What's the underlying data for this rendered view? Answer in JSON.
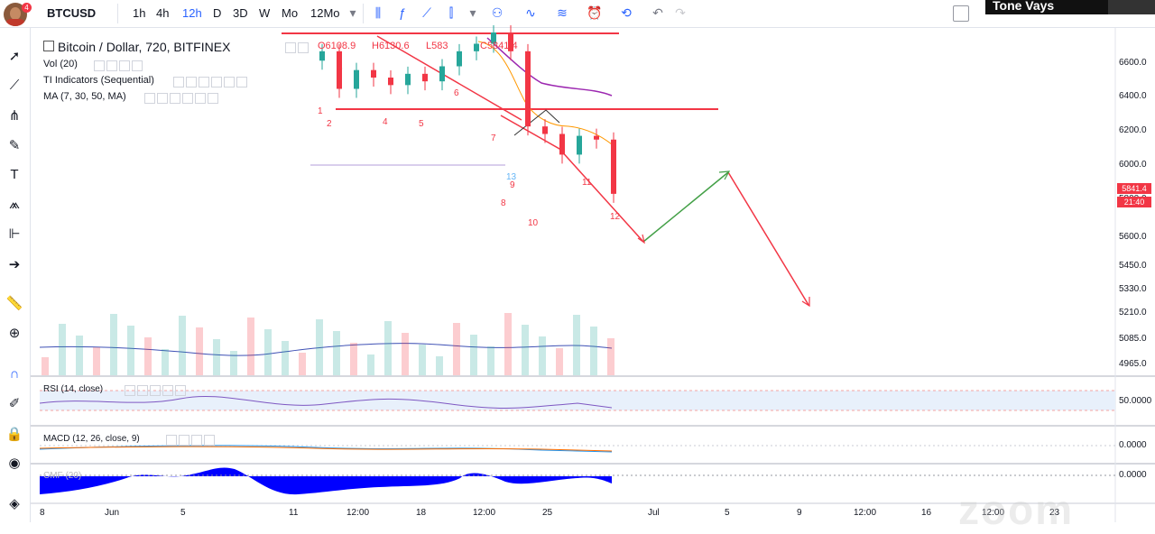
{
  "toolbar": {
    "symbol": "BTCUSD",
    "intervals": [
      "1h",
      "4h",
      "12h",
      "D",
      "3D",
      "W",
      "Mo",
      "12Mo"
    ],
    "active_interval": "12h",
    "icons": [
      "bar-chart-icon",
      "indicators-icon",
      "line-tool-icon",
      "compare-icon",
      "dropdown-icon",
      "alert-icon",
      "replay-icon",
      "undo-icon",
      "redo-icon"
    ]
  },
  "video_overlay": {
    "name": "Tone Vays"
  },
  "chart": {
    "title": "Bitcoin / Dollar, 720, BITFINEX",
    "ohlc": {
      "o": "O6108.9",
      "h": "H6130.6",
      "l": "L583",
      "c": "C5841.4"
    },
    "legends": [
      "Vol (20)",
      "TI Indicators (Sequential)",
      "MA (7, 30, 50, MA)"
    ],
    "current_price": "5841.4",
    "countdown": "21:40"
  },
  "price_axis": [
    "6600.0",
    "6400.0",
    "6200.0",
    "6000.0",
    "5800.0",
    "5600.0",
    "5450.0",
    "5330.0",
    "5210.0",
    "5085.0",
    "4965.0"
  ],
  "rsi": {
    "label": "RSI (14, close)",
    "axis": "50.0000"
  },
  "macd": {
    "label": "MACD (12, 26, close, 9)",
    "axis": "0.0000"
  },
  "cmf": {
    "label": "CMF (20)",
    "axis": "0.0000"
  },
  "time_axis": [
    "8",
    "Jun",
    "5",
    "11",
    "12:00",
    "18",
    "12:00",
    "25",
    "Jul",
    "5",
    "9",
    "12:00",
    "16",
    "12:00",
    "23"
  ],
  "sequential_numbers": [
    "1",
    "2",
    "3",
    "4",
    "5",
    "6",
    "7",
    "8",
    "9",
    "10",
    "11",
    "12",
    "13"
  ],
  "watermark": "zoom",
  "colors": {
    "accent": "#2962ff",
    "down": "#f23645",
    "up": "#26a69a",
    "cmf": "#0000ff"
  },
  "chart_data": {
    "type": "candlestick",
    "x": [
      "Jun 8",
      "Jun 11",
      "Jun 12",
      "Jun 13",
      "Jun 14",
      "Jun 15",
      "Jun 16",
      "Jun 17",
      "Jun 18",
      "Jun 19",
      "Jun 20",
      "Jun 21",
      "Jun 22",
      "Jun 23",
      "Jun 24",
      "Jun 25",
      "Jun 26",
      "Jun 27"
    ],
    "close": [
      6600,
      6400,
      6500,
      6460,
      6420,
      6480,
      6440,
      6520,
      6600,
      6640,
      6700,
      6600,
      6200,
      6160,
      6050,
      6150,
      6130,
      5841.4
    ],
    "ylim": [
      4900,
      6700
    ],
    "lines": {
      "resistance_high": 6700,
      "resistance_mid": 6280
    }
  }
}
